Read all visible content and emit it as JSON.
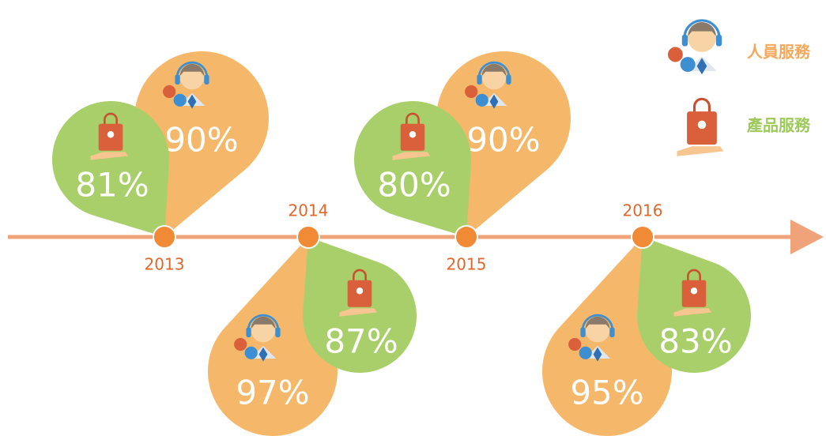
{
  "legend": {
    "staff": "人員服務",
    "product": "產品服務"
  },
  "items": [
    {
      "year": "2013",
      "staff": "90%",
      "product": "81%"
    },
    {
      "year": "2014",
      "staff": "97%",
      "product": "87%"
    },
    {
      "year": "2015",
      "staff": "90%",
      "product": "80%"
    },
    {
      "year": "2016",
      "staff": "95%",
      "product": "83%"
    }
  ]
}
